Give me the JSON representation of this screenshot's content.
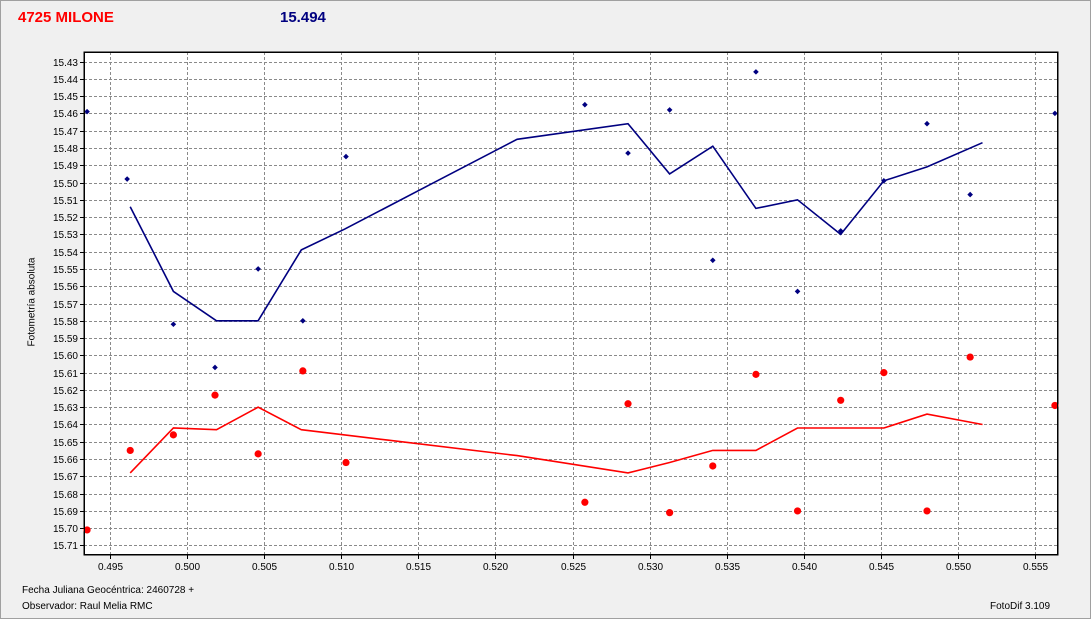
{
  "header": {
    "star_name": "4725 MILONE",
    "reference_mag": "15.494"
  },
  "footer": {
    "jd_label": "Fecha Juliana Geocéntrica: 2460728 +",
    "observer_label": "Observador: Raul Melia RMC",
    "software_label": "FotoDif 3.109"
  },
  "colors": {
    "primary": "#000080",
    "secondary": "#ff0000",
    "grid": "#8a8a8a",
    "plot_bg": "#ffffff"
  },
  "chart_data": {
    "type": "scatter",
    "title": "4725 MILONE",
    "ylabel": "Fotometría absoluta",
    "xlabel": "",
    "xlim": [
      0.4933,
      0.5565
    ],
    "ylim": [
      15.4245,
      15.7155
    ],
    "y_inverted": true,
    "grid": true,
    "x_ticks": [
      0.495,
      0.5,
      0.505,
      0.51,
      0.515,
      0.52,
      0.525,
      0.53,
      0.535,
      0.54,
      0.545,
      0.55,
      0.555
    ],
    "x_tick_labels": [
      "0.495",
      "0.500",
      "0.505",
      "0.510",
      "0.515",
      "0.520",
      "0.525",
      "0.530",
      "0.535",
      "0.540",
      "0.545",
      "0.550",
      "0.555"
    ],
    "y_ticks": [
      15.43,
      15.44,
      15.45,
      15.46,
      15.47,
      15.48,
      15.49,
      15.5,
      15.51,
      15.52,
      15.53,
      15.54,
      15.55,
      15.56,
      15.57,
      15.58,
      15.59,
      15.6,
      15.61,
      15.62,
      15.63,
      15.64,
      15.65,
      15.66,
      15.67,
      15.68,
      15.69,
      15.7,
      15.71
    ],
    "y_tick_labels": [
      "15.43",
      "15.44",
      "15.45",
      "15.46",
      "15.47",
      "15.48",
      "15.49",
      "15.50",
      "15.51",
      "15.52",
      "15.53",
      "15.54",
      "15.55",
      "15.56",
      "15.57",
      "15.58",
      "15.59",
      "15.60",
      "15.61",
      "15.62",
      "15.63",
      "15.64",
      "15.65",
      "15.66",
      "15.67",
      "15.68",
      "15.69",
      "15.70",
      "15.71"
    ],
    "series": [
      {
        "color": "#000080",
        "marker": "diamond",
        "points": [
          {
            "x": 0.4935,
            "y": 15.459
          },
          {
            "x": 0.4961,
            "y": 15.498
          },
          {
            "x": 0.4991,
            "y": 15.582
          },
          {
            "x": 0.5018,
            "y": 15.607
          },
          {
            "x": 0.5046,
            "y": 15.55
          },
          {
            "x": 0.5075,
            "y": 15.58
          },
          {
            "x": 0.5103,
            "y": 15.485
          },
          {
            "x": 0.5258,
            "y": 15.455
          },
          {
            "x": 0.5286,
            "y": 15.483
          },
          {
            "x": 0.5313,
            "y": 15.458
          },
          {
            "x": 0.5341,
            "y": 15.545
          },
          {
            "x": 0.5369,
            "y": 15.436
          },
          {
            "x": 0.5396,
            "y": 15.563
          },
          {
            "x": 0.5424,
            "y": 15.528
          },
          {
            "x": 0.5452,
            "y": 15.499
          },
          {
            "x": 0.548,
            "y": 15.466
          },
          {
            "x": 0.5508,
            "y": 15.507
          },
          {
            "x": 0.5563,
            "y": 15.46
          }
        ],
        "trend": [
          {
            "x": 0.4963,
            "y": 15.514
          },
          {
            "x": 0.4991,
            "y": 15.563
          },
          {
            "x": 0.5019,
            "y": 15.58
          },
          {
            "x": 0.5046,
            "y": 15.58
          },
          {
            "x": 0.5074,
            "y": 15.539
          },
          {
            "x": 0.5102,
            "y": 15.527
          },
          {
            "x": 0.5158,
            "y": 15.501
          },
          {
            "x": 0.5214,
            "y": 15.475
          },
          {
            "x": 0.5286,
            "y": 15.466
          },
          {
            "x": 0.5313,
            "y": 15.495
          },
          {
            "x": 0.5341,
            "y": 15.479
          },
          {
            "x": 0.5369,
            "y": 15.515
          },
          {
            "x": 0.5396,
            "y": 15.51
          },
          {
            "x": 0.5424,
            "y": 15.53
          },
          {
            "x": 0.5452,
            "y": 15.499
          },
          {
            "x": 0.548,
            "y": 15.491
          },
          {
            "x": 0.5516,
            "y": 15.477
          }
        ]
      },
      {
        "color": "#ff0000",
        "marker": "circle",
        "points": [
          {
            "x": 0.4935,
            "y": 15.701
          },
          {
            "x": 0.4963,
            "y": 15.655
          },
          {
            "x": 0.4991,
            "y": 15.646
          },
          {
            "x": 0.5018,
            "y": 15.623
          },
          {
            "x": 0.5046,
            "y": 15.657
          },
          {
            "x": 0.5075,
            "y": 15.609
          },
          {
            "x": 0.5103,
            "y": 15.662
          },
          {
            "x": 0.5258,
            "y": 15.685
          },
          {
            "x": 0.5286,
            "y": 15.628
          },
          {
            "x": 0.5313,
            "y": 15.691
          },
          {
            "x": 0.5341,
            "y": 15.664
          },
          {
            "x": 0.5369,
            "y": 15.611
          },
          {
            "x": 0.5396,
            "y": 15.69
          },
          {
            "x": 0.5424,
            "y": 15.626
          },
          {
            "x": 0.5452,
            "y": 15.61
          },
          {
            "x": 0.548,
            "y": 15.69
          },
          {
            "x": 0.5508,
            "y": 15.601
          },
          {
            "x": 0.5563,
            "y": 15.629
          }
        ],
        "trend": [
          {
            "x": 0.4963,
            "y": 15.668
          },
          {
            "x": 0.4991,
            "y": 15.642
          },
          {
            "x": 0.5019,
            "y": 15.643
          },
          {
            "x": 0.5046,
            "y": 15.63
          },
          {
            "x": 0.5074,
            "y": 15.643
          },
          {
            "x": 0.513,
            "y": 15.649
          },
          {
            "x": 0.5214,
            "y": 15.658
          },
          {
            "x": 0.5286,
            "y": 15.668
          },
          {
            "x": 0.5313,
            "y": 15.662
          },
          {
            "x": 0.5341,
            "y": 15.655
          },
          {
            "x": 0.5369,
            "y": 15.655
          },
          {
            "x": 0.5396,
            "y": 15.642
          },
          {
            "x": 0.5424,
            "y": 15.642
          },
          {
            "x": 0.5452,
            "y": 15.642
          },
          {
            "x": 0.548,
            "y": 15.634
          },
          {
            "x": 0.5516,
            "y": 15.64
          }
        ]
      }
    ]
  }
}
